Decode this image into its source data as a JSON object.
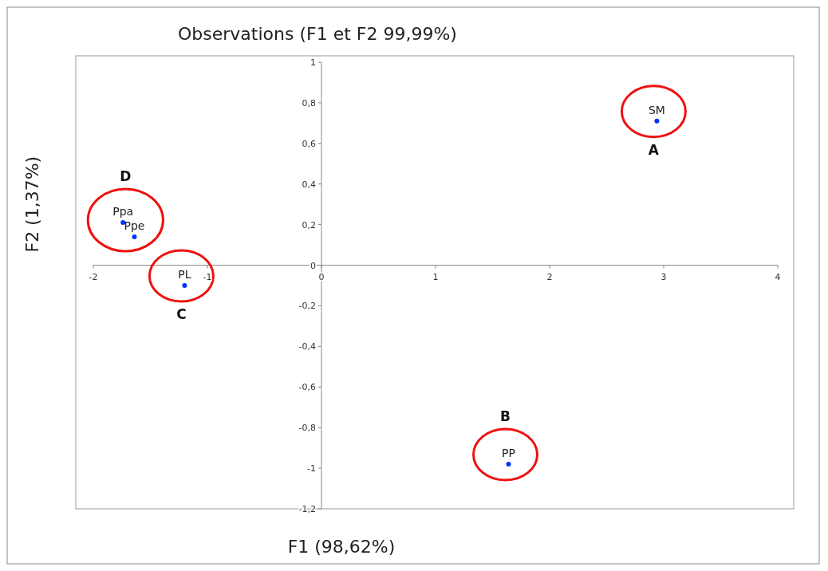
{
  "chart_data": {
    "type": "scatter",
    "title": "Observations (F1 et F2 99,99%)",
    "xlabel": "F1 (98,62%)",
    "ylabel": "F2 (1,37%)",
    "x": [
      2.94,
      1.64,
      -1.74,
      -1.64,
      -1.2
    ],
    "series": [
      {
        "color": "#0033ff",
        "values": [
          0.71,
          -0.98,
          0.21,
          0.14,
          -0.1
        ]
      }
    ],
    "marker": "circle",
    "xlim": [
      -2,
      4
    ],
    "xticks": [
      -2,
      {
        "value": -1,
        "label": "-1"
      },
      0,
      1,
      2,
      3,
      4
    ],
    "ylim": [
      -1.2,
      1
    ],
    "yticks": [
      {
        "value": -1.2,
        "label": "-1,2"
      },
      {
        "value": -1,
        "label": "-1"
      },
      {
        "value": -0.8,
        "label": "-0,8"
      },
      {
        "value": -0.6,
        "label": "-0,6"
      },
      {
        "value": -0.4,
        "label": "-0,4"
      },
      {
        "value": -0.2,
        "label": "-0,2"
      },
      0,
      {
        "value": 0.2,
        "label": "0,2"
      },
      {
        "value": 0.4,
        "label": "0,4"
      },
      {
        "value": 0.6,
        "label": "0,6"
      },
      {
        "value": 0.8,
        "label": "0,8"
      },
      1
    ],
    "annotations": [
      {
        "text": "SM",
        "x": 2.94,
        "y": 0.71
      },
      {
        "text": "PP",
        "x": 1.64,
        "y": -0.98
      },
      {
        "text": "Ppa",
        "x": -1.74,
        "y": 0.21
      },
      {
        "text": "Ppe",
        "x": -1.64,
        "y": 0.14
      },
      {
        "text": "PL",
        "x": -1.2,
        "y": -0.1
      },
      "A",
      "B",
      "C",
      "D"
    ]
  }
}
